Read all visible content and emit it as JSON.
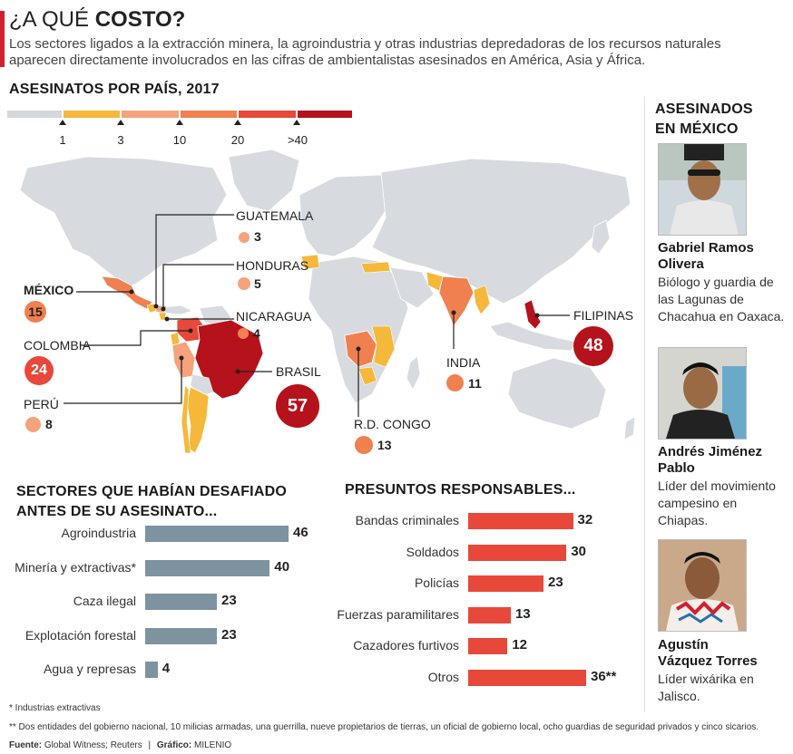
{
  "header": {
    "title_light": "¿A QUÉ",
    "title_bold": "COSTO?",
    "intro": "Los sectores ligados a la extracción minera, la agroindustria y otras industrias depredadoras de los recursos naturales aparecen directamente involucrados en las cifras de ambientalistas asesinados en América, Asia y África."
  },
  "colors": {
    "accent": "#d02030",
    "land": "#d7dbe0",
    "scale": [
      "#d3d8de",
      "#f5b83a",
      "#f5a27d",
      "#f08050",
      "#e8483a",
      "#b5121b"
    ],
    "sector_bar": "#7d93a0",
    "resp_bar": "#e8483a"
  },
  "map_section": {
    "title": "ASESINATOS POR PAÍS, 2017",
    "legend_ticks": [
      "1",
      "3",
      "10",
      "20",
      ">40"
    ],
    "countries": [
      {
        "name": "GUATEMALA",
        "value": "3"
      },
      {
        "name": "HONDURAS",
        "value": "5"
      },
      {
        "name": "MÉXICO",
        "value": "15"
      },
      {
        "name": "NICARAGUA",
        "value": "4"
      },
      {
        "name": "COLOMBIA",
        "value": "24"
      },
      {
        "name": "BRASIL",
        "value": "57"
      },
      {
        "name": "PERÚ",
        "value": "8"
      },
      {
        "name": "R.D. CONGO",
        "value": "13"
      },
      {
        "name": "INDIA",
        "value": "11"
      },
      {
        "name": "FILIPINAS",
        "value": "48"
      }
    ]
  },
  "chart_data": [
    {
      "type": "bar",
      "orientation": "horizontal",
      "title": "SECTORES QUE HABÍAN DESAFIADO ANTES DE SU ASESINATO...",
      "categories": [
        "Agroindustria",
        "Minería y extractivas*",
        "Caza ilegal",
        "Explotación forestal",
        "Agua y represas"
      ],
      "values": [
        46,
        40,
        23,
        23,
        4
      ],
      "value_labels": [
        "46",
        "40",
        "23",
        "23",
        "4"
      ],
      "xlim": [
        0,
        46
      ]
    },
    {
      "type": "bar",
      "orientation": "horizontal",
      "title": "PRESUNTOS RESPONSABLES...",
      "categories": [
        "Bandas criminales",
        "Soldados",
        "Policías",
        "Fuerzas paramilitares",
        "Cazadores furtivos",
        "Otros"
      ],
      "values": [
        32,
        30,
        23,
        13,
        12,
        36
      ],
      "value_labels": [
        "32",
        "30",
        "23",
        "13",
        "12",
        "36**"
      ],
      "xlim": [
        0,
        36
      ]
    }
  ],
  "mexico": {
    "title_line1": "ASESINADOS",
    "title_line2": "EN MÉXICO",
    "people": [
      {
        "name_line1": "Gabriel Ramos",
        "name_line2": "Olivera",
        "desc": "Biólogo y guardia de las Lagunas de Chacahua en Oaxaca."
      },
      {
        "name_line1": "Andrés Jiménez",
        "name_line2": "Pablo",
        "desc": "Líder del movimiento campesino en Chiapas."
      },
      {
        "name_line1": "Agustín",
        "name_line2": "Vázquez Torres",
        "desc": "Líder wixárika en Jalisco."
      }
    ]
  },
  "footer": {
    "note1": "* Industrias extractivas",
    "note2": "** Dos entidades del gobierno nacional, 10 milicias armadas, una guerrilla, nueve propietarios de tierras, un oficial de gobierno local, ocho guardias de seguridad privados y cinco sicarios.",
    "source_label": "Fuente:",
    "source_value": "Global Witness; Reuters",
    "sep": "|",
    "graphic_label": "Gráfico:",
    "graphic_value": "MILENIO"
  }
}
